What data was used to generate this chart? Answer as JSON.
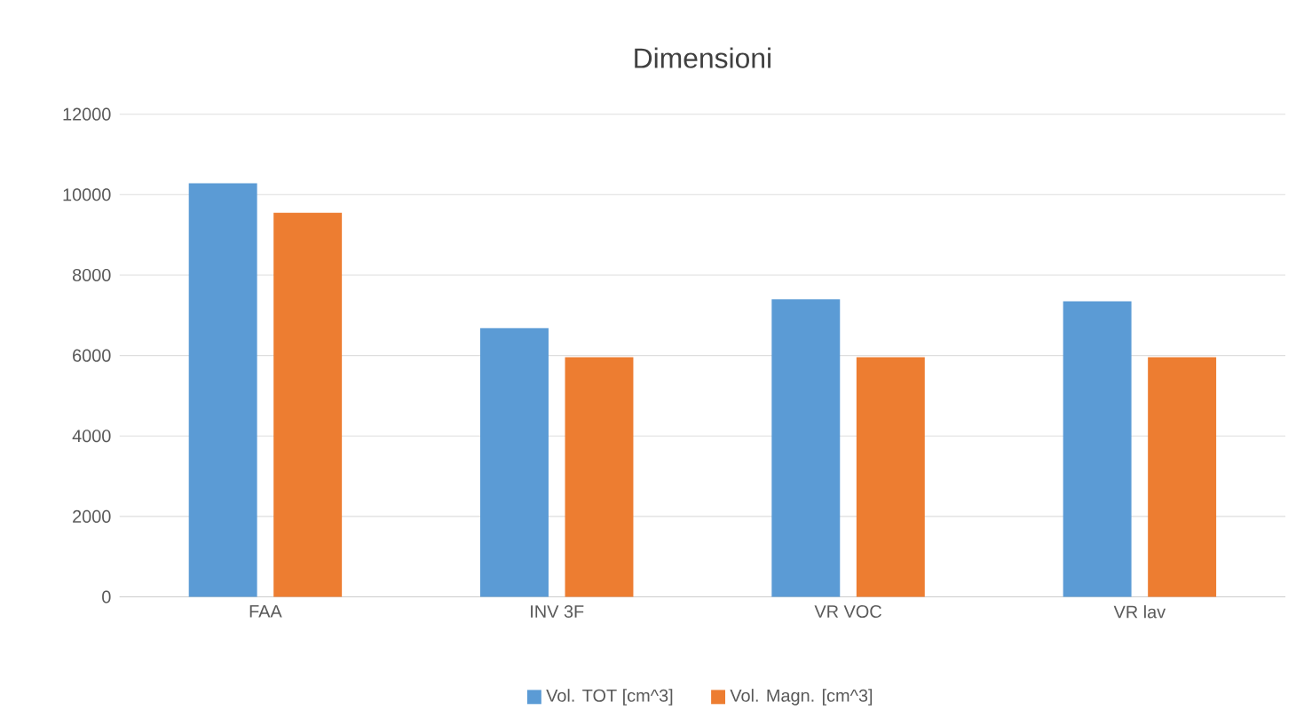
{
  "chart_data": {
    "type": "bar",
    "title": "Dimensioni",
    "categories": [
      "FAA",
      "INV 3F",
      "VR VOC",
      "VR lav"
    ],
    "series": [
      {
        "name": "Vol. TOT [cm^3]",
        "color": "#5b9bd5",
        "values": [
          10280,
          6680,
          7400,
          7350
        ]
      },
      {
        "name": "Vol. Magn. [cm^3]",
        "color": "#ed7d31",
        "values": [
          9550,
          5960,
          5960,
          5960
        ]
      }
    ],
    "ylim": [
      0,
      12000
    ],
    "yticks": [
      0,
      2000,
      4000,
      6000,
      8000,
      10000,
      12000
    ],
    "grid": "y",
    "legend": "bottom"
  }
}
